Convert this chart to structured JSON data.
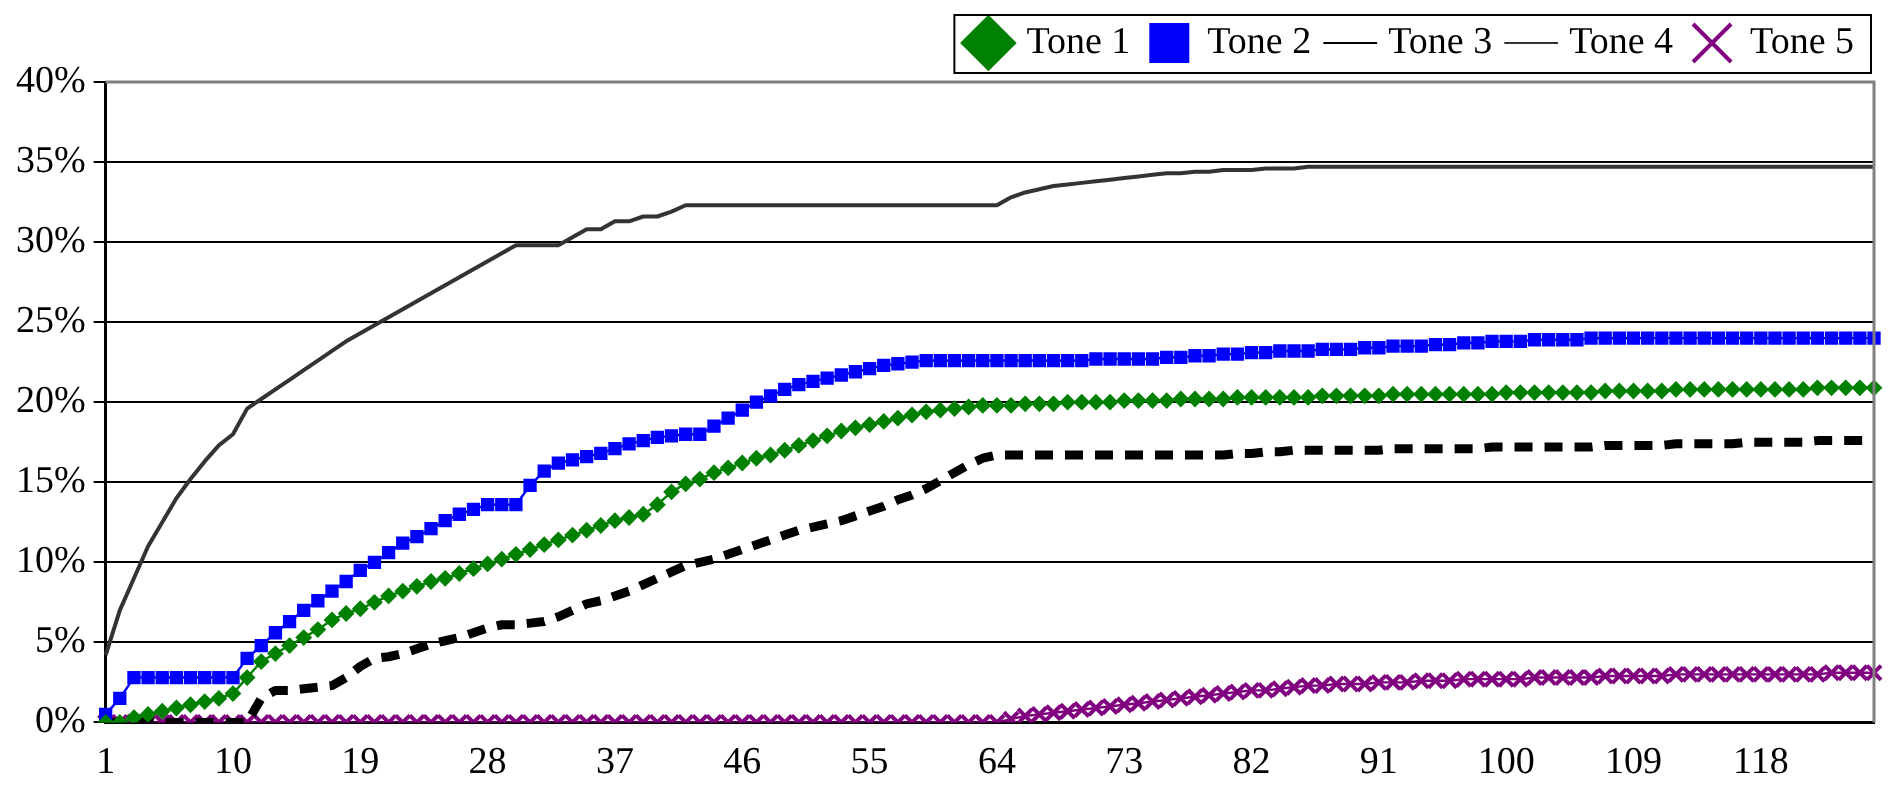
{
  "chart_data": {
    "type": "line",
    "categories": [
      "1",
      null,
      null,
      null,
      null,
      null,
      null,
      null,
      null,
      "10",
      null,
      null,
      null,
      null,
      null,
      null,
      null,
      null,
      "19",
      null,
      null,
      null,
      null,
      null,
      null,
      null,
      null,
      "28",
      null,
      null,
      null,
      null,
      null,
      null,
      null,
      null,
      "37",
      null,
      null,
      null,
      null,
      null,
      null,
      null,
      null,
      "46",
      null,
      null,
      null,
      null,
      null,
      null,
      null,
      null,
      "55",
      null,
      null,
      null,
      null,
      null,
      null,
      null,
      null,
      "64",
      null,
      null,
      null,
      null,
      null,
      null,
      null,
      null,
      "73",
      null,
      null,
      null,
      null,
      null,
      null,
      null,
      null,
      "82",
      null,
      null,
      null,
      null,
      null,
      null,
      null,
      null,
      "91",
      null,
      null,
      null,
      null,
      null,
      null,
      null,
      null,
      "100",
      null,
      null,
      null,
      null,
      null,
      null,
      null,
      null,
      "109",
      null,
      null,
      null,
      null,
      null,
      null,
      null,
      null,
      "118",
      null,
      null,
      null,
      null,
      null,
      null,
      null,
      null
    ],
    "ylim": [
      0,
      40
    ],
    "yticks": [
      {
        "value": 0,
        "label": "0%"
      },
      {
        "value": 5,
        "label": "5%"
      },
      {
        "value": 10,
        "label": "10%"
      },
      {
        "value": 15,
        "label": "15%"
      },
      {
        "value": 20,
        "label": "20%"
      },
      {
        "value": 25,
        "label": "25%"
      },
      {
        "value": 30,
        "label": "30%"
      },
      {
        "value": 35,
        "label": "35%"
      },
      {
        "value": 40,
        "label": "40%"
      }
    ],
    "grid": "y",
    "legend": "top",
    "series": [
      {
        "name": "Tone 1",
        "color": "#008000",
        "marker": "diamond",
        "line_style": "solid",
        "values": [
          0,
          0,
          0.3,
          0.5,
          0.7,
          0.9,
          1.1,
          1.3,
          1.5,
          1.8,
          2.8,
          3.8,
          4.3,
          4.8,
          5.3,
          5.8,
          6.4,
          6.8,
          7.1,
          7.5,
          7.9,
          8.2,
          8.5,
          8.8,
          9,
          9.3,
          9.6,
          9.9,
          10.2,
          10.5,
          10.8,
          11.1,
          11.4,
          11.7,
          12,
          12.3,
          12.6,
          12.8,
          13,
          13.6,
          14.4,
          14.9,
          15.2,
          15.6,
          15.9,
          16.2,
          16.5,
          16.7,
          17,
          17.3,
          17.6,
          17.9,
          18.2,
          18.4,
          18.6,
          18.8,
          19,
          19.2,
          19.4,
          19.5,
          19.6,
          19.7,
          19.8,
          19.8,
          19.8,
          19.9,
          19.9,
          19.9,
          20,
          20,
          20,
          20,
          20.1,
          20.1,
          20.1,
          20.1,
          20.2,
          20.2,
          20.2,
          20.2,
          20.3,
          20.3,
          20.3,
          20.3,
          20.3,
          20.3,
          20.4,
          20.4,
          20.4,
          20.4,
          20.4,
          20.5,
          20.5,
          20.5,
          20.5,
          20.5,
          20.5,
          20.5,
          20.5,
          20.6,
          20.6,
          20.6,
          20.6,
          20.6,
          20.6,
          20.6,
          20.7,
          20.7,
          20.7,
          20.7,
          20.7,
          20.8,
          20.8,
          20.8,
          20.8,
          20.8,
          20.8,
          20.8,
          20.8,
          20.8,
          20.8,
          20.9,
          20.9,
          20.9,
          20.9,
          20.9
        ]
      },
      {
        "name": "Tone 2",
        "color": "#0000ff",
        "marker": "square",
        "line_style": "solid",
        "values": [
          0.5,
          1.5,
          2.8,
          2.8,
          2.8,
          2.8,
          2.8,
          2.8,
          2.8,
          2.8,
          4,
          4.8,
          5.6,
          6.3,
          7,
          7.6,
          8.2,
          8.8,
          9.5,
          10,
          10.6,
          11.2,
          11.6,
          12.1,
          12.6,
          13,
          13.3,
          13.6,
          13.6,
          13.6,
          14.8,
          15.7,
          16.2,
          16.4,
          16.6,
          16.8,
          17.1,
          17.4,
          17.6,
          17.8,
          17.9,
          18,
          18,
          18.5,
          19,
          19.5,
          20,
          20.4,
          20.8,
          21.1,
          21.3,
          21.5,
          21.7,
          21.9,
          22.1,
          22.3,
          22.4,
          22.5,
          22.6,
          22.6,
          22.6,
          22.6,
          22.6,
          22.6,
          22.6,
          22.6,
          22.6,
          22.6,
          22.6,
          22.6,
          22.7,
          22.7,
          22.7,
          22.7,
          22.7,
          22.8,
          22.8,
          22.9,
          22.9,
          23,
          23,
          23.1,
          23.1,
          23.2,
          23.2,
          23.2,
          23.3,
          23.3,
          23.3,
          23.4,
          23.4,
          23.5,
          23.5,
          23.5,
          23.6,
          23.6,
          23.7,
          23.7,
          23.8,
          23.8,
          23.8,
          23.9,
          23.9,
          23.9,
          23.9,
          24,
          24,
          24,
          24,
          24,
          24,
          24,
          24,
          24,
          24,
          24,
          24,
          24,
          24,
          24,
          24,
          24,
          24,
          24,
          24,
          24
        ]
      },
      {
        "name": "Tone 3",
        "color": "#000000",
        "marker": "none",
        "line_style": "dashed",
        "values": [
          0,
          0,
          0,
          0,
          0,
          0,
          0,
          0,
          0,
          0,
          0,
          1.5,
          2,
          2,
          2.1,
          2.2,
          2.3,
          2.8,
          3.5,
          4,
          4.1,
          4.3,
          4.6,
          4.9,
          5.1,
          5.3,
          5.6,
          5.9,
          6.1,
          6.1,
          6.2,
          6.3,
          6.6,
          7,
          7.4,
          7.6,
          7.9,
          8.2,
          8.6,
          9,
          9.4,
          9.8,
          10,
          10.2,
          10.5,
          10.8,
          11.1,
          11.4,
          11.7,
          12,
          12.2,
          12.4,
          12.6,
          12.9,
          13.2,
          13.5,
          13.9,
          14.2,
          14.6,
          15.1,
          15.6,
          16.1,
          16.5,
          16.7,
          16.7,
          16.7,
          16.7,
          16.7,
          16.7,
          16.7,
          16.7,
          16.7,
          16.7,
          16.7,
          16.7,
          16.7,
          16.7,
          16.7,
          16.7,
          16.7,
          16.8,
          16.8,
          16.9,
          16.9,
          17,
          17,
          17,
          17,
          17,
          17,
          17,
          17.1,
          17.1,
          17.1,
          17.1,
          17.1,
          17.1,
          17.1,
          17.2,
          17.2,
          17.2,
          17.2,
          17.2,
          17.2,
          17.2,
          17.2,
          17.3,
          17.3,
          17.3,
          17.3,
          17.3,
          17.4,
          17.4,
          17.4,
          17.4,
          17.4,
          17.5,
          17.5,
          17.5,
          17.5,
          17.5,
          17.6,
          17.6,
          17.6,
          17.6,
          17.6
        ]
      },
      {
        "name": "Tone 4",
        "color": "#333333",
        "marker": "none",
        "line_style": "solid",
        "values": [
          4.2,
          7,
          9,
          11,
          12.5,
          14,
          15.2,
          16.3,
          17.3,
          18,
          19.6,
          20.2,
          20.8,
          21.4,
          22,
          22.6,
          23.2,
          23.8,
          24.3,
          24.8,
          25.3,
          25.8,
          26.3,
          26.8,
          27.3,
          27.8,
          28.3,
          28.8,
          29.3,
          29.8,
          29.8,
          29.8,
          29.8,
          30.3,
          30.8,
          30.8,
          31.3,
          31.3,
          31.6,
          31.6,
          31.9,
          32.3,
          32.3,
          32.3,
          32.3,
          32.3,
          32.3,
          32.3,
          32.3,
          32.3,
          32.3,
          32.3,
          32.3,
          32.3,
          32.3,
          32.3,
          32.3,
          32.3,
          32.3,
          32.3,
          32.3,
          32.3,
          32.3,
          32.3,
          32.8,
          33.1,
          33.3,
          33.5,
          33.6,
          33.7,
          33.8,
          33.9,
          34,
          34.1,
          34.2,
          34.3,
          34.3,
          34.4,
          34.4,
          34.5,
          34.5,
          34.5,
          34.6,
          34.6,
          34.6,
          34.7,
          34.7,
          34.7,
          34.7,
          34.7,
          34.7,
          34.7,
          34.7,
          34.7,
          34.7,
          34.7,
          34.7,
          34.7,
          34.7,
          34.7,
          34.7,
          34.7,
          34.7,
          34.7,
          34.7,
          34.7,
          34.7,
          34.7,
          34.7,
          34.7,
          34.7,
          34.7,
          34.7,
          34.7,
          34.7,
          34.7,
          34.7,
          34.7,
          34.7,
          34.7,
          34.7,
          34.7,
          34.7,
          34.7,
          34.7,
          34.7
        ]
      },
      {
        "name": "Tone 5",
        "color": "#800080",
        "marker": "cross",
        "line_style": "solid",
        "values": [
          0,
          0,
          0,
          0,
          0,
          0,
          0,
          0,
          0,
          0,
          0,
          0,
          0,
          0,
          0,
          0,
          0,
          0,
          0,
          0,
          0,
          0,
          0,
          0,
          0,
          0,
          0,
          0,
          0,
          0,
          0,
          0,
          0,
          0,
          0,
          0,
          0,
          0,
          0,
          0,
          0,
          0,
          0,
          0,
          0,
          0,
          0,
          0,
          0,
          0,
          0,
          0,
          0,
          0,
          0,
          0,
          0,
          0,
          0,
          0,
          0,
          0,
          0,
          0,
          0.2,
          0.4,
          0.5,
          0.6,
          0.7,
          0.8,
          0.9,
          1,
          1.1,
          1.2,
          1.3,
          1.4,
          1.5,
          1.6,
          1.7,
          1.8,
          1.9,
          2,
          2,
          2.1,
          2.2,
          2.3,
          2.3,
          2.4,
          2.4,
          2.4,
          2.5,
          2.5,
          2.5,
          2.6,
          2.6,
          2.6,
          2.7,
          2.7,
          2.7,
          2.7,
          2.7,
          2.8,
          2.8,
          2.8,
          2.8,
          2.8,
          2.9,
          2.9,
          2.9,
          2.9,
          2.9,
          3,
          3,
          3,
          3,
          3,
          3,
          3,
          3,
          3,
          3,
          3,
          3.1,
          3.1,
          3.1,
          3.1
        ]
      }
    ]
  }
}
